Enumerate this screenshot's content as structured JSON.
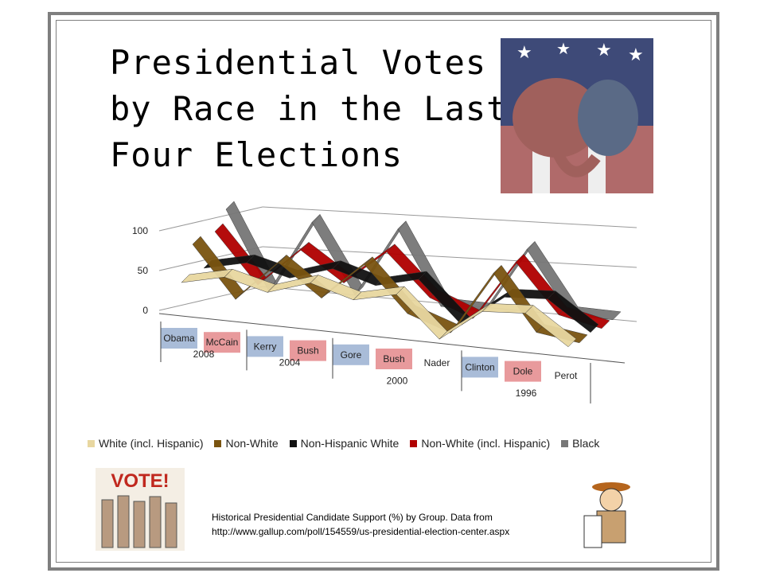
{
  "slide": {
    "title_lines": [
      "Presidential Votes",
      "by Race in the Last",
      "Four Elections"
    ],
    "note_line1": "Historical Presidential Candidate Support (%) by Group. Data from",
    "note_line2": "http://www.gallup.com/poll/154559/us-presidential-election-center.aspx",
    "vote_logo_text": "VOTE!"
  },
  "chart_data": {
    "type": "line",
    "style": "3d ribbon",
    "categories": [
      "Obama",
      "McCain",
      "Kerry",
      "Bush",
      "Gore",
      "Bush",
      "Nader",
      "Clinton",
      "Dole",
      "Perot"
    ],
    "category_party": [
      "dem",
      "rep",
      "dem",
      "rep",
      "dem",
      "rep",
      "other",
      "dem",
      "rep",
      "other"
    ],
    "year_groups": [
      {
        "label": "2008",
        "span": 2
      },
      {
        "label": "2004",
        "span": 2
      },
      {
        "label": "2000",
        "span": 3
      },
      {
        "label": "1996",
        "span": 3
      }
    ],
    "ylim": [
      0,
      100
    ],
    "yticks": [
      "0",
      "50",
      "100"
    ],
    "grid": true,
    "legend_position": "bottom",
    "party_colors": {
      "dem": "#a9bcd8",
      "rep": "#e89a9c"
    },
    "series": [
      {
        "name": "White (incl. Hispanic)",
        "color": "#e8d7a0",
        "values": [
          43,
          55,
          41,
          58,
          42,
          54,
          3,
          43,
          46,
          9
        ]
      },
      {
        "name": "Non-White",
        "color": "#7a5410",
        "values": [
          82,
          18,
          69,
          30,
          77,
          21,
          2,
          82,
          13,
          5
        ]
      },
      {
        "name": "Non-Hispanic White",
        "color": "#111111",
        "values": [
          43,
          55,
          41,
          58,
          42,
          55,
          3,
          43,
          46,
          9
        ]
      },
      {
        "name": "Non-White (incl. Hispanic)",
        "color": "#b00000",
        "values": [
          80,
          18,
          67,
          31,
          75,
          23,
          2,
          78,
          17,
          5
        ]
      },
      {
        "name": "Black",
        "color": "#777777",
        "values": [
          99,
          1,
          93,
          7,
          95,
          3,
          2,
          85,
          8,
          7
        ]
      }
    ]
  }
}
